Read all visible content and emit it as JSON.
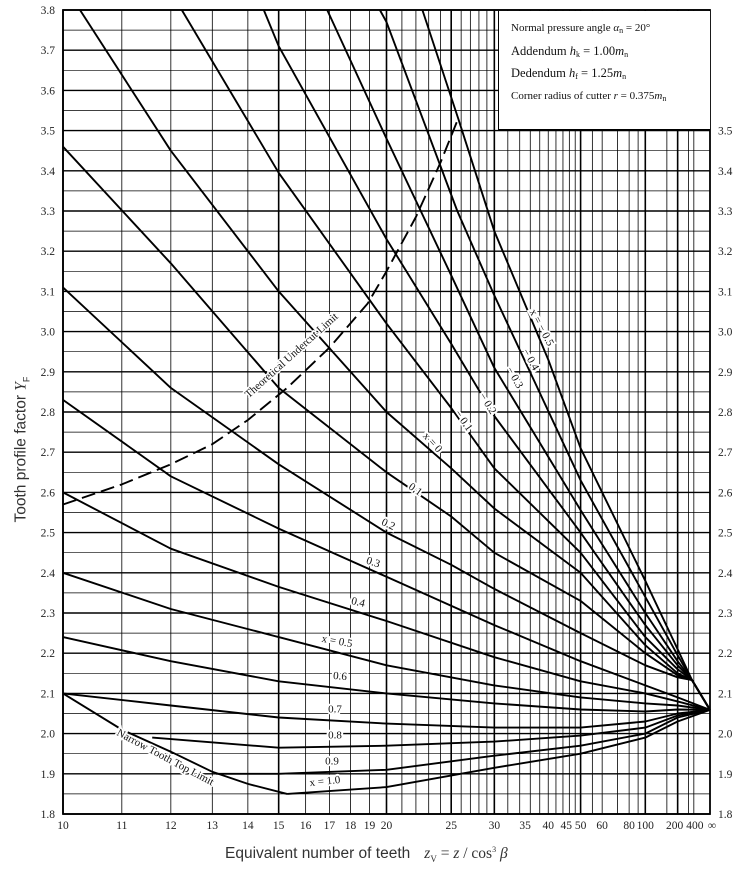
{
  "chart_data": {
    "type": "line",
    "title": "",
    "xlabel": "Equivalent number of teeth",
    "xlabel_formula": {
      "lhs": "z",
      "lhs_sub": "V",
      "eq": " = ",
      "num": "z",
      "slash": " / ",
      "den": "cos",
      "den_sup": "3",
      "den_sym": " β"
    },
    "ylabel": "Tooth profile factor",
    "ylabel_sym": "Y",
    "ylabel_sub": "F",
    "x_scale": "reciprocal (1/z)",
    "xlim": [
      10,
      "∞"
    ],
    "ylim": [
      1.8,
      3.8
    ],
    "grid": true,
    "x_ticks": [
      "10",
      "11",
      "12",
      "13",
      "14",
      "15",
      "16",
      "17",
      "18",
      "19",
      "20",
      "25",
      "30",
      "35",
      "40",
      "45",
      "50",
      "60",
      "80",
      "100",
      "200",
      "400",
      "∞"
    ],
    "x_tick_values": [
      10,
      11,
      12,
      13,
      14,
      15,
      16,
      17,
      18,
      19,
      20,
      25,
      30,
      35,
      40,
      45,
      50,
      60,
      80,
      100,
      200,
      400,
      null
    ],
    "y_ticks_left": [
      "3.8",
      "3.7",
      "3.6",
      "3.5",
      "3.4",
      "3.3",
      "3.2",
      "3.1",
      "3.0",
      "2.9",
      "2.8",
      "2.7",
      "2.6",
      "2.5",
      "2.4",
      "2.3",
      "2.2",
      "2.1",
      "2.0",
      "1.9",
      "1.8"
    ],
    "y_ticks_right": [
      "3.5",
      "3.4",
      "3.3",
      "3.2",
      "3.1",
      "3.0",
      "2.9",
      "2.8",
      "2.7",
      "2.6",
      "2.5",
      "2.4",
      "2.3",
      "2.2",
      "2.1",
      "2.0",
      "1.9",
      "1.8"
    ],
    "series": [
      {
        "name": "x = -0.5",
        "label": "x = − 0.5",
        "points": [
          [
            22.5,
            3.8
          ],
          [
            25.7,
            3.53
          ],
          [
            30,
            3.25
          ],
          [
            40,
            2.93
          ],
          [
            50,
            2.71
          ],
          [
            100,
            2.38
          ],
          [
            200,
            2.21
          ],
          [
            360,
            2.133
          ],
          [
            null,
            2.059
          ]
        ]
      },
      {
        "name": "x = -0.4",
        "label": "− 0.4",
        "points": [
          [
            19.6,
            3.8
          ],
          [
            20,
            3.77
          ],
          [
            25.6,
            3.3
          ],
          [
            30,
            3.09
          ],
          [
            50,
            2.63
          ],
          [
            100,
            2.34
          ],
          [
            200,
            2.195
          ],
          [
            360,
            2.133
          ],
          [
            null,
            2.059
          ]
        ]
      },
      {
        "name": "x = -0.3",
        "label": "− 0.3",
        "points": [
          [
            16.9,
            3.8
          ],
          [
            20,
            3.48
          ],
          [
            25,
            3.14
          ],
          [
            30,
            2.91
          ],
          [
            50,
            2.556
          ],
          [
            100,
            2.3
          ],
          [
            200,
            2.18
          ],
          [
            360,
            2.133
          ],
          [
            null,
            2.059
          ]
        ]
      },
      {
        "name": "x = -0.2",
        "label": "− 0.2",
        "points": [
          [
            14.5,
            3.8
          ],
          [
            15,
            3.71
          ],
          [
            20,
            3.23
          ],
          [
            25,
            2.97
          ],
          [
            30,
            2.79
          ],
          [
            50,
            2.5
          ],
          [
            100,
            2.27
          ],
          [
            200,
            2.17
          ],
          [
            360,
            2.133
          ],
          [
            null,
            2.059
          ]
        ]
      },
      {
        "name": "x = -0.1",
        "label": "− 0.1",
        "points": [
          [
            12.25,
            3.8
          ],
          [
            15,
            3.395
          ],
          [
            20,
            3.02
          ],
          [
            25,
            2.81
          ],
          [
            30,
            2.66
          ],
          [
            50,
            2.45
          ],
          [
            100,
            2.24
          ],
          [
            200,
            2.16
          ],
          [
            360,
            2.133
          ],
          [
            null,
            2.059
          ]
        ]
      },
      {
        "name": "x = 0",
        "label": "x = 0",
        "points": [
          [
            10.27,
            3.8
          ],
          [
            12,
            3.45
          ],
          [
            15,
            3.1
          ],
          [
            20,
            2.8
          ],
          [
            25,
            2.66
          ],
          [
            30,
            2.56
          ],
          [
            50,
            2.4
          ],
          [
            100,
            2.22
          ],
          [
            200,
            2.15
          ],
          [
            360,
            2.133
          ],
          [
            null,
            2.059
          ]
        ]
      },
      {
        "name": "x = 0.1",
        "label": "0.1",
        "points": [
          [
            10,
            3.46
          ],
          [
            12,
            3.17
          ],
          [
            15,
            2.86
          ],
          [
            20,
            2.65
          ],
          [
            25,
            2.54
          ],
          [
            30,
            2.45
          ],
          [
            50,
            2.33
          ],
          [
            100,
            2.2
          ],
          [
            200,
            2.145
          ],
          [
            360,
            2.133
          ],
          [
            null,
            2.059
          ]
        ]
      },
      {
        "name": "x = 0.2",
        "label": "0.2",
        "points": [
          [
            10,
            3.11
          ],
          [
            12,
            2.86
          ],
          [
            15,
            2.67
          ],
          [
            20,
            2.5
          ],
          [
            25,
            2.42
          ],
          [
            30,
            2.36
          ],
          [
            50,
            2.25
          ],
          [
            100,
            2.17
          ],
          [
            200,
            2.14
          ],
          [
            360,
            2.133
          ],
          [
            null,
            2.059
          ]
        ]
      },
      {
        "name": "x = 0.3",
        "label": "0.3",
        "points": [
          [
            10,
            2.83
          ],
          [
            12,
            2.64
          ],
          [
            15,
            2.51
          ],
          [
            20,
            2.39
          ],
          [
            30,
            2.27
          ],
          [
            50,
            2.18
          ],
          [
            100,
            2.12
          ],
          [
            200,
            2.09
          ],
          [
            null,
            2.059
          ]
        ]
      },
      {
        "name": "x = 0.4",
        "label": "0.4",
        "points": [
          [
            10,
            2.6
          ],
          [
            12,
            2.46
          ],
          [
            15,
            2.365
          ],
          [
            20,
            2.28
          ],
          [
            30,
            2.19
          ],
          [
            50,
            2.13
          ],
          [
            100,
            2.1
          ],
          [
            200,
            2.08
          ],
          [
            null,
            2.059
          ]
        ]
      },
      {
        "name": "x = 0.5",
        "label": "x = 0.5",
        "points": [
          [
            10,
            2.4
          ],
          [
            12,
            2.31
          ],
          [
            15,
            2.24
          ],
          [
            20,
            2.17
          ],
          [
            30,
            2.12
          ],
          [
            50,
            2.09
          ],
          [
            100,
            2.075
          ],
          [
            200,
            2.07
          ],
          [
            null,
            2.059
          ]
        ]
      },
      {
        "name": "x = 0.6",
        "label": "0.6",
        "points": [
          [
            10,
            2.24
          ],
          [
            12,
            2.18
          ],
          [
            15,
            2.13
          ],
          [
            20,
            2.1
          ],
          [
            30,
            2.075
          ],
          [
            50,
            2.06
          ],
          [
            100,
            2.055
          ],
          [
            200,
            2.06
          ],
          [
            null,
            2.059
          ]
        ]
      },
      {
        "name": "x = 0.7",
        "label": "0.7",
        "points": [
          [
            10,
            2.1
          ],
          [
            12,
            2.07
          ],
          [
            15,
            2.04
          ],
          [
            20,
            2.025
          ],
          [
            30,
            2.015
          ],
          [
            50,
            2.015
          ],
          [
            100,
            2.03
          ],
          [
            200,
            2.05
          ],
          [
            null,
            2.059
          ]
        ]
      },
      {
        "name": "x = 0.8",
        "label": "0.8",
        "points": [
          [
            11.6,
            1.99
          ],
          [
            15,
            1.965
          ],
          [
            20,
            1.97
          ],
          [
            30,
            1.98
          ],
          [
            50,
            1.995
          ],
          [
            100,
            2.015
          ],
          [
            200,
            2.045
          ],
          [
            null,
            2.059
          ]
        ]
      },
      {
        "name": "x = 0.9",
        "label": "0.9",
        "points": [
          [
            13.1,
            1.9
          ],
          [
            15,
            1.9
          ],
          [
            20,
            1.91
          ],
          [
            30,
            1.945
          ],
          [
            50,
            1.97
          ],
          [
            100,
            2.0
          ],
          [
            200,
            2.04
          ],
          [
            null,
            2.059
          ]
        ]
      },
      {
        "name": "x = 1.0",
        "label": "x = 1.0",
        "points": [
          [
            15.3,
            1.85
          ],
          [
            20,
            1.867
          ],
          [
            30,
            1.915
          ],
          [
            50,
            1.95
          ],
          [
            100,
            1.99
          ],
          [
            200,
            2.03
          ],
          [
            null,
            2.059
          ]
        ]
      }
    ],
    "limits": [
      {
        "name": "Theoretical Undercut Limit",
        "style": "dashed",
        "points": [
          [
            10,
            2.57
          ],
          [
            11,
            2.62
          ],
          [
            12,
            2.67
          ],
          [
            13,
            2.72
          ],
          [
            14,
            2.78
          ],
          [
            15.3,
            2.86
          ],
          [
            17,
            2.96
          ],
          [
            18.9,
            3.07
          ],
          [
            20,
            3.15
          ],
          [
            22,
            3.285
          ],
          [
            24,
            3.42
          ],
          [
            25.7,
            3.53
          ]
        ]
      },
      {
        "name": "Narrow Tooth Top Limit",
        "style": "solid",
        "points": [
          [
            10,
            2.1
          ],
          [
            11,
            2.01
          ],
          [
            12,
            1.955
          ],
          [
            13,
            1.905
          ],
          [
            14,
            1.875
          ],
          [
            15.3,
            1.85
          ]
        ]
      }
    ],
    "annotations": {
      "line1": {
        "text": "Normal pressure angle ",
        "sym": "α",
        "sub": "n",
        "rest": " = 20°"
      },
      "line2": {
        "text": "Addendum ",
        "sym": "h",
        "sub": "k",
        "rest": " = 1.00",
        "sym2": "m",
        "sub2": "n"
      },
      "line3": {
        "text": "Dedendum ",
        "sym": "h",
        "sub": "f",
        "rest": " = 1.25",
        "sym2": "m",
        "sub2": "n"
      },
      "line4": {
        "text": "Corner radius of cutter ",
        "sym": "r",
        "rest": " = 0.375",
        "sym2": "m",
        "sub2": "n"
      }
    }
  }
}
